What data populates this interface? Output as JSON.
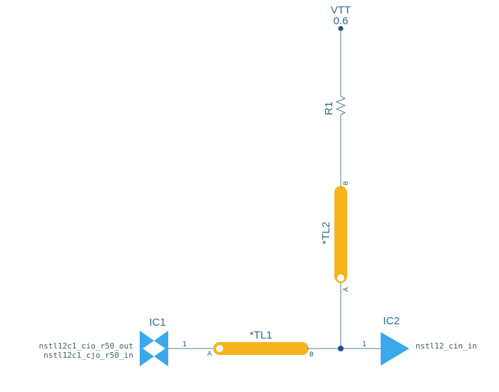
{
  "vtt": {
    "name": "VTT",
    "value": "0.6"
  },
  "r1": {
    "refdes": "R1"
  },
  "tl1": {
    "refdes": "*TL1",
    "pin_a": "A",
    "pin_b": "B"
  },
  "tl2": {
    "refdes": "*TL2",
    "pin_a": "A",
    "pin_b": "B"
  },
  "ic1": {
    "refdes": "IC1",
    "pin_number": "1",
    "net_out": "nstl12c1_cio_r50_out",
    "net_in": "nstl12c1_cjo_r50_in"
  },
  "ic2": {
    "refdes": "IC2",
    "pin_number": "1",
    "net_in": "nstl12_cin_in"
  },
  "colors": {
    "wire": "#4f7f95",
    "transmission_line": "#f5b41d",
    "buffer": "#3aa8ec",
    "junction": "#1d4f8a"
  }
}
